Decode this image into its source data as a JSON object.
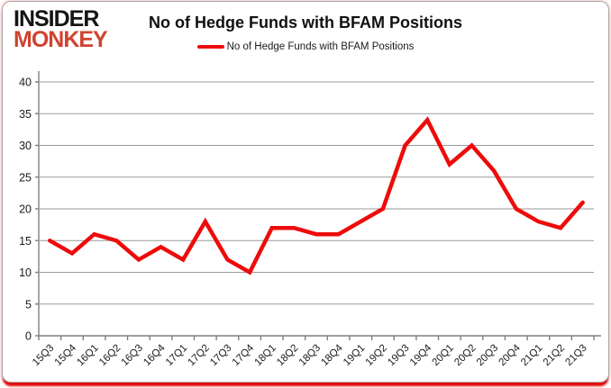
{
  "logo": {
    "line1": "INSIDER",
    "line2": "MONKEY"
  },
  "header": {
    "title": "No of Hedge Funds with BFAM Positions"
  },
  "legend": {
    "label": "No of Hedge Funds with BFAM Positions"
  },
  "colors": {
    "line": "#ee0b0b",
    "axis": "#7f7f7f",
    "grid": "#9a9a9a",
    "tick_label": "#1a1a1a",
    "logo_red": "#cf4330",
    "title": "#111111"
  },
  "chart_data": {
    "type": "line",
    "title": "No of Hedge Funds with BFAM Positions",
    "categories": [
      "15Q3",
      "15Q4",
      "16Q1",
      "16Q2",
      "16Q3",
      "16Q4",
      "17Q1",
      "17Q2",
      "17Q3",
      "17Q4",
      "18Q1",
      "18Q2",
      "18Q3",
      "18Q4",
      "19Q1",
      "19Q2",
      "19Q3",
      "19Q4",
      "20Q1",
      "20Q2",
      "20Q3",
      "20Q4",
      "21Q1",
      "21Q2",
      "21Q3"
    ],
    "series": [
      {
        "name": "No of Hedge Funds with BFAM Positions",
        "values": [
          15,
          13,
          16,
          15,
          12,
          14,
          12,
          18,
          12,
          10,
          17,
          17,
          16,
          16,
          18,
          20,
          30,
          34,
          27,
          30,
          26,
          20,
          18,
          17,
          21
        ]
      }
    ],
    "xlabel": "",
    "ylabel": "",
    "ylim": [
      0,
      40
    ],
    "yticks": [
      0,
      5,
      10,
      15,
      20,
      25,
      30,
      35,
      40
    ],
    "grid": true,
    "legend_position": "top-center"
  }
}
